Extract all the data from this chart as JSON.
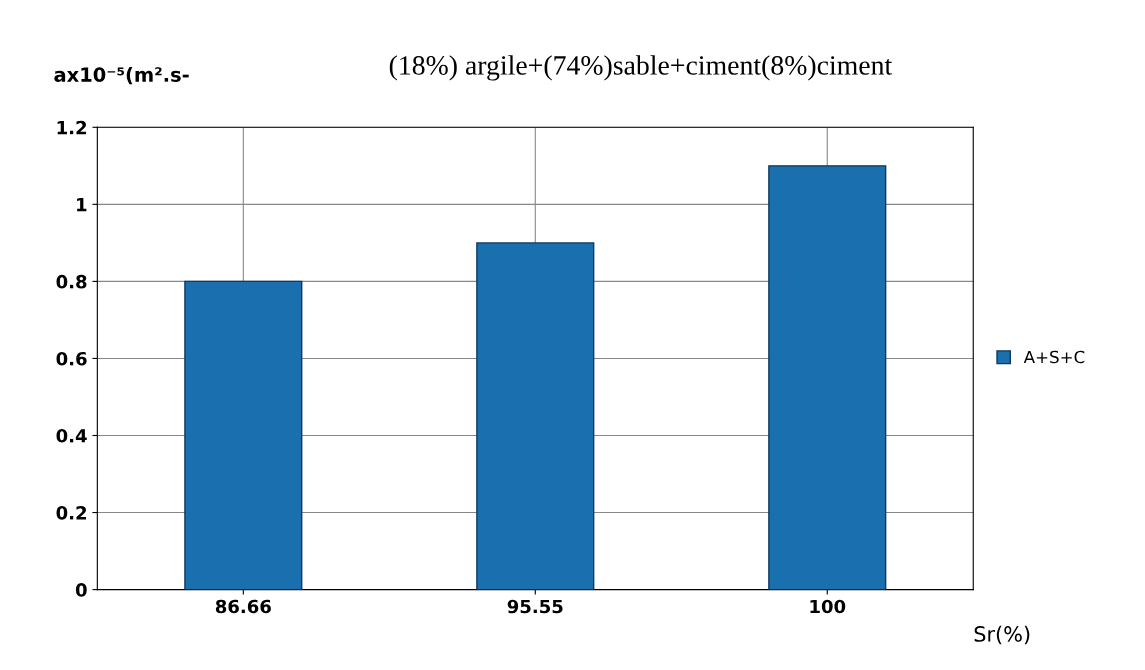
{
  "chart_data": {
    "type": "bar",
    "title": "(18%) argile+(74%)sable+ciment(8%)ciment",
    "ylabel": "ax10⁻⁵(m².s-",
    "xlabel": "Sr(%)",
    "categories": [
      "86.66",
      "95.55",
      "100"
    ],
    "series": [
      {
        "name": "A+S+C",
        "color": "#1a6fae",
        "values": [
          0.8,
          0.9,
          1.1
        ]
      }
    ],
    "ylim": [
      0,
      1.2
    ],
    "yticks": [
      0,
      0.2,
      0.4,
      0.6,
      0.8,
      1,
      1.2
    ],
    "grid": true,
    "legend": "right"
  }
}
